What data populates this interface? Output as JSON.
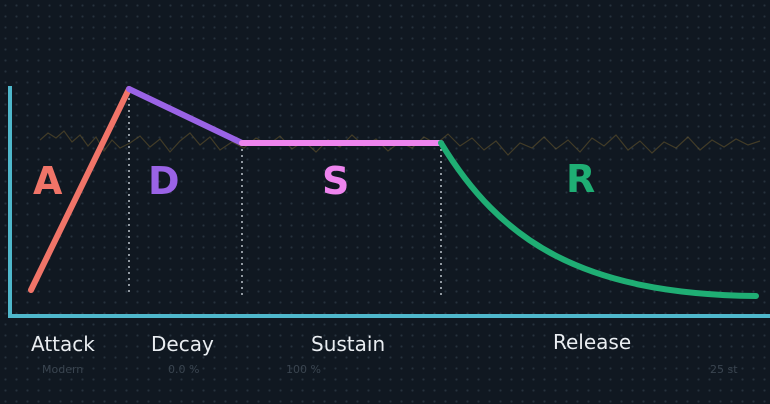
{
  "diagram": {
    "letters": {
      "attack": "A",
      "decay": "D",
      "sustain": "S",
      "release": "R"
    },
    "labels": {
      "attack": "Attack",
      "decay": "Decay",
      "sustain": "Sustain",
      "release": "Release"
    },
    "colors": {
      "background": "#101821",
      "axis": "#4fb8cc",
      "attack": "#f07468",
      "decay": "#9a63e6",
      "sustain": "#ee84ee",
      "release": "#1fae74",
      "background_wave": "#6a5a2e",
      "divider": "#c8d0d8"
    },
    "faded_controls": [
      "Modern",
      "0.0 %",
      "100 %",
      "25 st"
    ]
  }
}
